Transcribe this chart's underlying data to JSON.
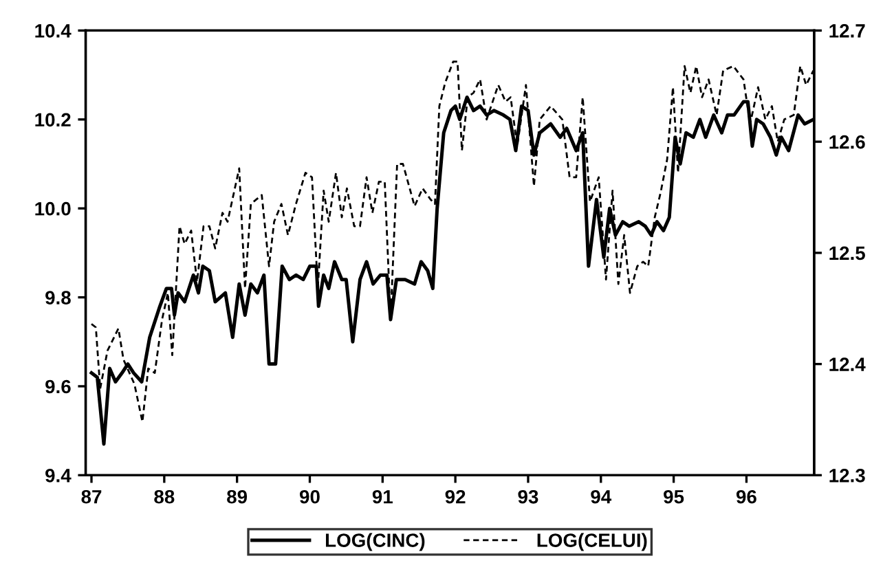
{
  "chart_data": {
    "type": "line",
    "xlim": [
      86.92,
      96.93
    ],
    "xticks": [
      {
        "value": 87,
        "label": "87"
      },
      {
        "value": 88,
        "label": "88"
      },
      {
        "value": 89,
        "label": "89"
      },
      {
        "value": 90,
        "label": "90"
      },
      {
        "value": 91,
        "label": "91"
      },
      {
        "value": 92,
        "label": "92"
      },
      {
        "value": 93,
        "label": "93"
      },
      {
        "value": 94,
        "label": "94"
      },
      {
        "value": 95,
        "label": "95"
      },
      {
        "value": 96,
        "label": "96"
      }
    ],
    "ylim": [
      9.4,
      10.4
    ],
    "yticks": [
      9.4,
      9.6,
      {
        "value": 9.8,
        "label": "9.8"
      },
      {
        "value": 10.0,
        "label": "10.0"
      },
      10.2,
      10.4
    ],
    "y2lim": [
      12.3,
      12.7
    ],
    "y2ticks": [
      12.3,
      12.4,
      12.5,
      12.6,
      12.7
    ],
    "legend": "bottom",
    "grid": false,
    "series": [
      {
        "name": "LOG(CINC)",
        "color": "#000000",
        "line_style": "solid",
        "axis": "y",
        "x": [
          87.0,
          87.08,
          87.17,
          87.25,
          87.33,
          87.42,
          87.5,
          87.58,
          87.69,
          87.8,
          87.94,
          88.03,
          88.1,
          88.14,
          88.19,
          88.28,
          88.4,
          88.47,
          88.53,
          88.62,
          88.7,
          88.84,
          88.94,
          89.03,
          89.11,
          89.19,
          89.28,
          89.37,
          89.44,
          89.53,
          89.62,
          89.72,
          89.81,
          89.91,
          90.0,
          90.09,
          90.12,
          90.19,
          90.26,
          90.34,
          90.44,
          90.5,
          90.59,
          90.69,
          90.78,
          90.87,
          90.97,
          91.06,
          91.11,
          91.19,
          91.31,
          91.44,
          91.53,
          91.62,
          91.69,
          91.75,
          91.84,
          91.94,
          92.0,
          92.06,
          92.16,
          92.25,
          92.34,
          92.43,
          92.53,
          92.66,
          92.75,
          92.83,
          92.91,
          93.0,
          93.08,
          93.16,
          93.31,
          93.44,
          93.53,
          93.66,
          93.75,
          93.83,
          93.94,
          94.04,
          94.12,
          94.2,
          94.3,
          94.39,
          94.52,
          94.61,
          94.69,
          94.77,
          94.86,
          94.94,
          95.02,
          95.09,
          95.17,
          95.27,
          95.36,
          95.44,
          95.55,
          95.66,
          95.74,
          95.83,
          95.96,
          96.02,
          96.08,
          96.14,
          96.23,
          96.33,
          96.41,
          96.48,
          96.58,
          96.71,
          96.8,
          96.92
        ],
        "values": [
          9.63,
          9.62,
          9.47,
          9.64,
          9.61,
          9.63,
          9.65,
          9.63,
          9.61,
          9.71,
          9.78,
          9.82,
          9.82,
          9.76,
          9.81,
          9.79,
          9.85,
          9.81,
          9.87,
          9.86,
          9.79,
          9.81,
          9.71,
          9.83,
          9.76,
          9.83,
          9.81,
          9.85,
          9.65,
          9.65,
          9.87,
          9.84,
          9.85,
          9.84,
          9.87,
          9.87,
          9.78,
          9.85,
          9.82,
          9.88,
          9.84,
          9.84,
          9.7,
          9.84,
          9.88,
          9.83,
          9.85,
          9.85,
          9.75,
          9.84,
          9.84,
          9.83,
          9.88,
          9.86,
          9.82,
          10.0,
          10.17,
          10.22,
          10.23,
          10.2,
          10.25,
          10.22,
          10.23,
          10.21,
          10.22,
          10.21,
          10.2,
          10.13,
          10.23,
          10.22,
          10.12,
          10.17,
          10.19,
          10.16,
          10.18,
          10.13,
          10.17,
          9.87,
          10.02,
          9.89,
          10.0,
          9.94,
          9.97,
          9.96,
          9.97,
          9.96,
          9.94,
          9.97,
          9.95,
          9.98,
          10.16,
          10.1,
          10.17,
          10.16,
          10.2,
          10.16,
          10.21,
          10.17,
          10.21,
          10.21,
          10.24,
          10.24,
          10.14,
          10.2,
          10.19,
          10.16,
          10.12,
          10.16,
          10.13,
          10.21,
          10.19,
          10.2
        ]
      },
      {
        "name": "LOG(CELUI)",
        "color": "#000000",
        "line_style": "dashed",
        "axis": "y2",
        "x": [
          87.0,
          87.06,
          87.12,
          87.22,
          87.37,
          87.44,
          87.59,
          87.7,
          87.78,
          87.87,
          87.97,
          88.05,
          88.11,
          88.21,
          88.28,
          88.37,
          88.45,
          88.54,
          88.62,
          88.7,
          88.8,
          88.87,
          89.03,
          89.11,
          89.19,
          89.34,
          89.44,
          89.51,
          89.61,
          89.7,
          89.81,
          89.94,
          90.03,
          90.11,
          90.19,
          90.26,
          90.36,
          90.44,
          90.51,
          90.61,
          90.69,
          90.78,
          90.86,
          90.95,
          91.03,
          91.11,
          91.2,
          91.28,
          91.44,
          91.55,
          91.66,
          91.72,
          91.78,
          91.86,
          91.97,
          92.03,
          92.09,
          92.17,
          92.25,
          92.34,
          92.43,
          92.59,
          92.69,
          92.76,
          92.85,
          92.97,
          93.08,
          93.16,
          93.31,
          93.47,
          93.57,
          93.66,
          93.75,
          93.85,
          93.97,
          94.07,
          94.16,
          94.24,
          94.32,
          94.4,
          94.5,
          94.58,
          94.65,
          94.74,
          94.82,
          94.91,
          94.99,
          95.06,
          95.15,
          95.23,
          95.31,
          95.39,
          95.48,
          95.59,
          95.68,
          95.82,
          95.96,
          96.05,
          96.16,
          96.26,
          96.35,
          96.43,
          96.52,
          96.65,
          96.74,
          96.82,
          96.92
        ],
        "values": [
          12.436,
          12.433,
          12.378,
          12.412,
          12.432,
          12.404,
          12.382,
          12.348,
          12.396,
          12.392,
          12.44,
          12.464,
          12.408,
          12.524,
          12.508,
          12.52,
          12.474,
          12.524,
          12.524,
          12.504,
          12.536,
          12.528,
          12.576,
          12.468,
          12.544,
          12.552,
          12.488,
          12.528,
          12.544,
          12.516,
          12.544,
          12.572,
          12.568,
          12.468,
          12.556,
          12.528,
          12.572,
          12.532,
          12.558,
          12.524,
          12.524,
          12.568,
          12.536,
          12.564,
          12.564,
          12.44,
          12.58,
          12.58,
          12.542,
          12.558,
          12.548,
          12.544,
          12.632,
          12.653,
          12.672,
          12.672,
          12.592,
          12.64,
          12.644,
          12.656,
          12.62,
          12.651,
          12.636,
          12.64,
          12.596,
          12.651,
          12.56,
          12.62,
          12.632,
          12.62,
          12.568,
          12.568,
          12.64,
          12.546,
          12.568,
          12.476,
          12.556,
          12.472,
          12.516,
          12.464,
          12.488,
          12.492,
          12.488,
          12.532,
          12.554,
          12.584,
          12.649,
          12.572,
          12.668,
          12.644,
          12.668,
          12.64,
          12.656,
          12.624,
          12.664,
          12.668,
          12.656,
          12.616,
          12.649,
          12.62,
          12.632,
          12.6,
          12.62,
          12.624,
          12.668,
          12.651,
          12.664
        ]
      }
    ]
  }
}
